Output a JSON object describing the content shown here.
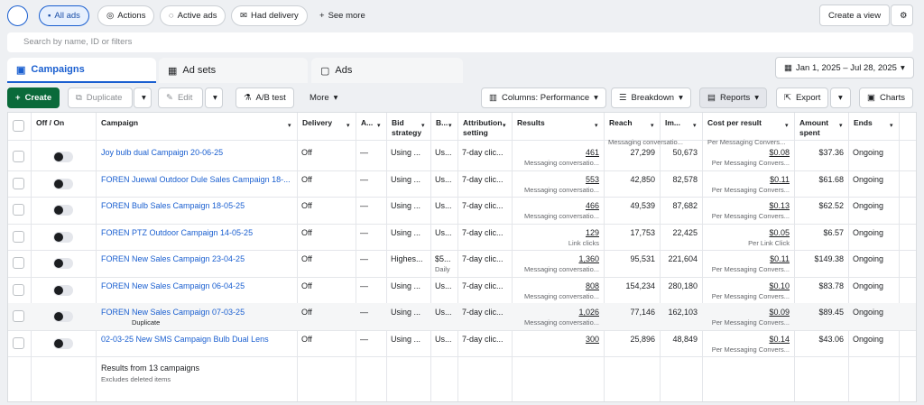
{
  "toolbar": {
    "filters": [
      "All ads",
      "Actions",
      "Active ads",
      "Had delivery"
    ],
    "see_more": "See more",
    "create_view": "Create a view",
    "search_placeholder": "Search by name, ID or filters"
  },
  "tabs": [
    "Campaigns",
    "Ad sets",
    "Ads"
  ],
  "date_range": "Jan 1, 2025 – Jul 28, 2025",
  "actions": {
    "create": "Create",
    "duplicate": "Duplicate",
    "edit": "Edit",
    "ab_test": "A/B test",
    "more": "More",
    "columns": "Columns: Performance",
    "breakdown": "Breakdown",
    "reports": "Reports",
    "export": "Export",
    "charts": "Charts"
  },
  "table": {
    "columns": [
      "Off / On",
      "Campaign",
      "Delivery",
      "A...",
      "Bid strategy",
      "B...",
      "Attribution setting",
      "Results",
      "Reach",
      "Im...",
      "Cost per result",
      "Amount spent",
      "Ends"
    ],
    "top_partial": {
      "results_type": "Messaging conversatio...",
      "cost_type": "Per Messaging Convers..."
    },
    "rows": [
      {
        "campaign": "Joy bulb dual Campaign 20-06-25",
        "delivery": "Off",
        "a": "—",
        "bid": "Using ...",
        "b": "Us...",
        "attribution": "7-day clic...",
        "results": "461",
        "results_type": "Messaging conversatio...",
        "reach": "27,299",
        "impressions": "50,673",
        "cost": "$0.08",
        "cost_type": "Per Messaging Convers...",
        "amount": "$37.36",
        "ends": "Ongoing"
      },
      {
        "campaign": "FOREN Juewal Outdoor Dule Sales Campaign 18-...",
        "delivery": "Off",
        "a": "—",
        "bid": "Using ...",
        "b": "Us...",
        "attribution": "7-day clic...",
        "results": "553",
        "results_type": "Messaging conversatio...",
        "reach": "42,850",
        "impressions": "82,578",
        "cost": "$0.11",
        "cost_type": "Per Messaging Convers...",
        "amount": "$61.68",
        "ends": "Ongoing"
      },
      {
        "campaign": "FOREN Bulb Sales Campaign 18-05-25",
        "delivery": "Off",
        "a": "—",
        "bid": "Using ...",
        "b": "Us...",
        "attribution": "7-day clic...",
        "results": "466",
        "results_type": "Messaging conversatio...",
        "reach": "49,539",
        "impressions": "87,682",
        "cost": "$0.13",
        "cost_type": "Per Messaging Convers...",
        "amount": "$62.52",
        "ends": "Ongoing"
      },
      {
        "campaign": "FOREN PTZ Outdoor Campaign 14-05-25",
        "delivery": "Off",
        "a": "—",
        "bid": "Using ...",
        "b": "Us...",
        "attribution": "7-day clic...",
        "results": "129",
        "results_type": "Link clicks",
        "reach": "17,753",
        "impressions": "22,425",
        "cost": "$0.05",
        "cost_type": "Per Link Click",
        "amount": "$6.57",
        "ends": "Ongoing"
      },
      {
        "campaign": "FOREN New Sales Campaign 23-04-25",
        "delivery": "Off",
        "a": "—",
        "bid": "Highes...",
        "b": "$5...",
        "b_sub": "Daily",
        "attribution": "7-day clic...",
        "results": "1,360",
        "results_type": "Messaging conversatio...",
        "reach": "95,531",
        "impressions": "221,604",
        "cost": "$0.11",
        "cost_type": "Per Messaging Convers...",
        "amount": "$149.38",
        "ends": "Ongoing"
      },
      {
        "campaign": "FOREN New Sales Campaign 06-04-25",
        "delivery": "Off",
        "a": "—",
        "bid": "Using ...",
        "b": "Us...",
        "attribution": "7-day clic...",
        "results": "808",
        "results_type": "Messaging conversatio...",
        "reach": "154,234",
        "impressions": "280,180",
        "cost": "$0.10",
        "cost_type": "Per Messaging Convers...",
        "amount": "$83.78",
        "ends": "Ongoing"
      },
      {
        "campaign": "FOREN New Sales Campaign 07-03-25",
        "hover_action": "Duplicate",
        "delivery": "Off",
        "a": "—",
        "bid": "Using ...",
        "b": "Us...",
        "attribution": "7-day clic...",
        "results": "1,026",
        "results_type": "Messaging conversatio...",
        "reach": "77,146",
        "impressions": "162,103",
        "cost": "$0.09",
        "cost_type": "Per Messaging Convers...",
        "amount": "$89.45",
        "ends": "Ongoing"
      },
      {
        "campaign": "02-03-25 New SMS Campaign Bulb Dual Lens",
        "delivery": "Off",
        "a": "—",
        "bid": "Using ...",
        "b": "Us...",
        "attribution": "7-day clic...",
        "results": "300",
        "reach": "25,896",
        "impressions": "48,849",
        "cost": "$0.14",
        "cost_type": "Per Messaging Convers...",
        "amount": "$43.06",
        "ends": "Ongoing"
      }
    ],
    "footer": {
      "summary": "Results from 13 campaigns",
      "note": "Excludes deleted items"
    }
  }
}
